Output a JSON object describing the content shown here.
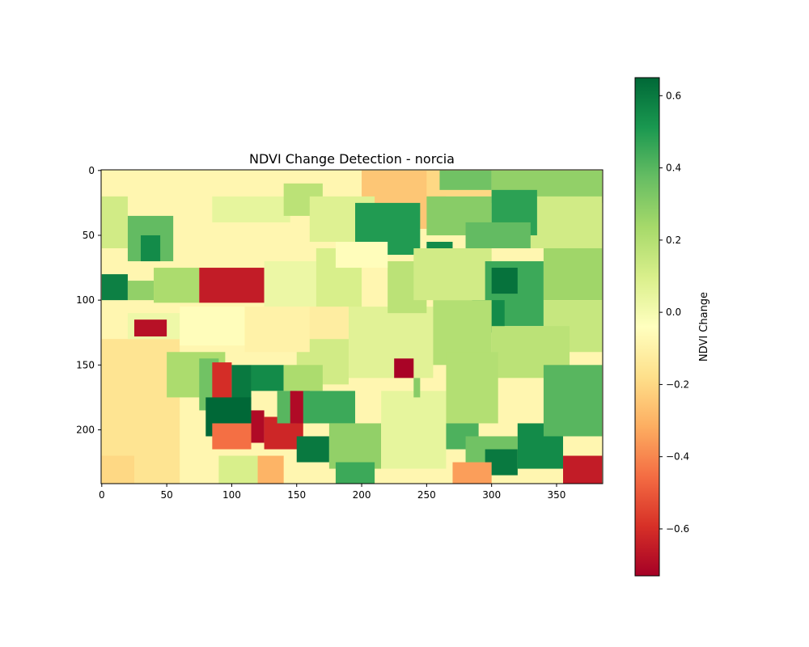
{
  "chart_data": {
    "type": "heatmap",
    "title": "NDVI Change Detection - norcia",
    "xlabel": "",
    "ylabel": "",
    "image_shape": [
      242,
      386
    ],
    "xlim": [
      -0.5,
      385.5
    ],
    "ylim": [
      241.5,
      -0.5
    ],
    "x_ticks": [
      0,
      50,
      100,
      150,
      200,
      250,
      300,
      350
    ],
    "y_ticks": [
      0,
      50,
      100,
      150,
      200
    ],
    "colormap": "RdYlGn",
    "colormap_stops": [
      "#a50026",
      "#d73027",
      "#f46d43",
      "#fdae61",
      "#fee08b",
      "#ffffbf",
      "#d9ef8b",
      "#a6d96a",
      "#66bd63",
      "#1a9850",
      "#006837"
    ],
    "background_value": -0.08,
    "colorbar": {
      "label": "NDVI Change",
      "range": [
        -0.73,
        0.65
      ],
      "ticks": [
        0.6,
        0.4,
        0.2,
        0.0,
        -0.2,
        -0.4,
        -0.6
      ],
      "tick_labels": [
        "0.6",
        "0.4",
        "0.2",
        "0.0",
        "−0.2",
        "−0.4",
        "−0.6"
      ]
    },
    "regions": [
      {
        "x": [
          0,
          60
        ],
        "y": [
          130,
          242
        ],
        "value": -0.16
      },
      {
        "x": [
          200,
          265
        ],
        "y": [
          0,
          45
        ],
        "value": -0.25
      },
      {
        "x": [
          250,
          300
        ],
        "y": [
          0,
          20
        ],
        "value": -0.2
      },
      {
        "x": [
          300,
          385
        ],
        "y": [
          0,
          25
        ],
        "value": 0.28
      },
      {
        "x": [
          330,
          385
        ],
        "y": [
          20,
          60
        ],
        "value": 0.12
      },
      {
        "x": [
          260,
          300
        ],
        "y": [
          0,
          15
        ],
        "value": 0.35
      },
      {
        "x": [
          85,
          145
        ],
        "y": [
          20,
          40
        ],
        "value": 0.05
      },
      {
        "x": [
          140,
          170
        ],
        "y": [
          10,
          35
        ],
        "value": 0.18
      },
      {
        "x": [
          160,
          210
        ],
        "y": [
          20,
          55
        ],
        "value": 0.08
      },
      {
        "x": [
          195,
          245
        ],
        "y": [
          25,
          65
        ],
        "value": 0.5
      },
      {
        "x": [
          250,
          300
        ],
        "y": [
          20,
          50
        ],
        "value": 0.3
      },
      {
        "x": [
          300,
          335
        ],
        "y": [
          15,
          50
        ],
        "value": 0.48
      },
      {
        "x": [
          280,
          330
        ],
        "y": [
          40,
          60
        ],
        "value": 0.38
      },
      {
        "x": [
          250,
          270
        ],
        "y": [
          55,
          70
        ],
        "value": 0.55
      },
      {
        "x": [
          0,
          20
        ],
        "y": [
          20,
          60
        ],
        "value": 0.12
      },
      {
        "x": [
          20,
          55
        ],
        "y": [
          35,
          70
        ],
        "value": 0.38
      },
      {
        "x": [
          30,
          45
        ],
        "y": [
          50,
          70
        ],
        "value": 0.55
      },
      {
        "x": [
          0,
          20
        ],
        "y": [
          80,
          100
        ],
        "value": 0.58
      },
      {
        "x": [
          20,
          40
        ],
        "y": [
          85,
          100
        ],
        "value": 0.28
      },
      {
        "x": [
          40,
          75
        ],
        "y": [
          75,
          102
        ],
        "value": 0.22
      },
      {
        "x": [
          75,
          125
        ],
        "y": [
          75,
          102
        ],
        "value": -0.65
      },
      {
        "x": [
          125,
          165
        ],
        "y": [
          70,
          108
        ],
        "value": 0.03
      },
      {
        "x": [
          165,
          200
        ],
        "y": [
          60,
          110
        ],
        "value": 0.1
      },
      {
        "x": [
          185,
          255
        ],
        "y": [
          105,
          160
        ],
        "value": 0.07
      },
      {
        "x": [
          155,
          190
        ],
        "y": [
          105,
          135
        ],
        "value": -0.12
      },
      {
        "x": [
          150,
          190
        ],
        "y": [
          130,
          165
        ],
        "value": 0.12
      },
      {
        "x": [
          220,
          250
        ],
        "y": [
          70,
          110
        ],
        "value": 0.18
      },
      {
        "x": [
          240,
          300
        ],
        "y": [
          60,
          100
        ],
        "value": 0.12
      },
      {
        "x": [
          295,
          340
        ],
        "y": [
          70,
          120
        ],
        "value": 0.45
      },
      {
        "x": [
          300,
          320
        ],
        "y": [
          75,
          95
        ],
        "value": 0.62
      },
      {
        "x": [
          340,
          385
        ],
        "y": [
          60,
          100
        ],
        "value": 0.25
      },
      {
        "x": [
          340,
          385
        ],
        "y": [
          100,
          140
        ],
        "value": 0.15
      },
      {
        "x": [
          285,
          310
        ],
        "y": [
          100,
          125
        ],
        "value": 0.55
      },
      {
        "x": [
          255,
          300
        ],
        "y": [
          100,
          150
        ],
        "value": 0.2
      },
      {
        "x": [
          300,
          360
        ],
        "y": [
          120,
          160
        ],
        "value": 0.18
      },
      {
        "x": [
          20,
          60
        ],
        "y": [
          110,
          130
        ],
        "value": 0.02
      },
      {
        "x": [
          25,
          50
        ],
        "y": [
          115,
          128
        ],
        "value": -0.68
      },
      {
        "x": [
          60,
          110
        ],
        "y": [
          105,
          135
        ],
        "value": -0.05
      },
      {
        "x": [
          110,
          160
        ],
        "y": [
          105,
          140
        ],
        "value": -0.1
      },
      {
        "x": [
          50,
          95
        ],
        "y": [
          140,
          175
        ],
        "value": 0.22
      },
      {
        "x": [
          75,
          90
        ],
        "y": [
          145,
          185
        ],
        "value": 0.35
      },
      {
        "x": [
          85,
          100
        ],
        "y": [
          148,
          178
        ],
        "value": -0.6
      },
      {
        "x": [
          100,
          115
        ],
        "y": [
          150,
          180
        ],
        "value": 0.6
      },
      {
        "x": [
          115,
          140
        ],
        "y": [
          150,
          170
        ],
        "value": 0.55
      },
      {
        "x": [
          140,
          170
        ],
        "y": [
          150,
          170
        ],
        "value": 0.22
      },
      {
        "x": [
          80,
          115
        ],
        "y": [
          175,
          205
        ],
        "value": 0.65
      },
      {
        "x": [
          85,
          115
        ],
        "y": [
          195,
          215
        ],
        "value": -0.45
      },
      {
        "x": [
          115,
          125
        ],
        "y": [
          185,
          210
        ],
        "value": -0.7
      },
      {
        "x": [
          125,
          155
        ],
        "y": [
          190,
          215
        ],
        "value": -0.62
      },
      {
        "x": [
          135,
          150
        ],
        "y": [
          170,
          195
        ],
        "value": 0.4
      },
      {
        "x": [
          145,
          160
        ],
        "y": [
          170,
          195
        ],
        "value": -0.7
      },
      {
        "x": [
          155,
          195
        ],
        "y": [
          170,
          195
        ],
        "value": 0.45
      },
      {
        "x": [
          150,
          175
        ],
        "y": [
          205,
          225
        ],
        "value": 0.6
      },
      {
        "x": [
          175,
          215
        ],
        "y": [
          195,
          230
        ],
        "value": 0.28
      },
      {
        "x": [
          180,
          210
        ],
        "y": [
          225,
          242
        ],
        "value": 0.45
      },
      {
        "x": [
          215,
          265
        ],
        "y": [
          170,
          230
        ],
        "value": 0.05
      },
      {
        "x": [
          225,
          240
        ],
        "y": [
          145,
          160
        ],
        "value": -0.72
      },
      {
        "x": [
          265,
          305
        ],
        "y": [
          140,
          195
        ],
        "value": 0.2
      },
      {
        "x": [
          265,
          290
        ],
        "y": [
          195,
          215
        ],
        "value": 0.42
      },
      {
        "x": [
          280,
          320
        ],
        "y": [
          205,
          235
        ],
        "value": 0.35
      },
      {
        "x": [
          295,
          320
        ],
        "y": [
          215,
          235
        ],
        "value": 0.6
      },
      {
        "x": [
          320,
          355
        ],
        "y": [
          195,
          230
        ],
        "value": 0.55
      },
      {
        "x": [
          340,
          385
        ],
        "y": [
          150,
          205
        ],
        "value": 0.4
      },
      {
        "x": [
          355,
          385
        ],
        "y": [
          220,
          242
        ],
        "value": -0.65
      },
      {
        "x": [
          270,
          300
        ],
        "y": [
          225,
          242
        ],
        "value": -0.35
      },
      {
        "x": [
          0,
          25
        ],
        "y": [
          220,
          242
        ],
        "value": -0.2
      },
      {
        "x": [
          90,
          130
        ],
        "y": [
          220,
          242
        ],
        "value": 0.1
      },
      {
        "x": [
          120,
          140
        ],
        "y": [
          220,
          242
        ],
        "value": -0.3
      },
      {
        "x": [
          180,
          220
        ],
        "y": [
          55,
          75
        ],
        "value": -0.05
      },
      {
        "x": [
          240,
          245
        ],
        "y": [
          160,
          175
        ],
        "value": 0.3
      }
    ]
  }
}
